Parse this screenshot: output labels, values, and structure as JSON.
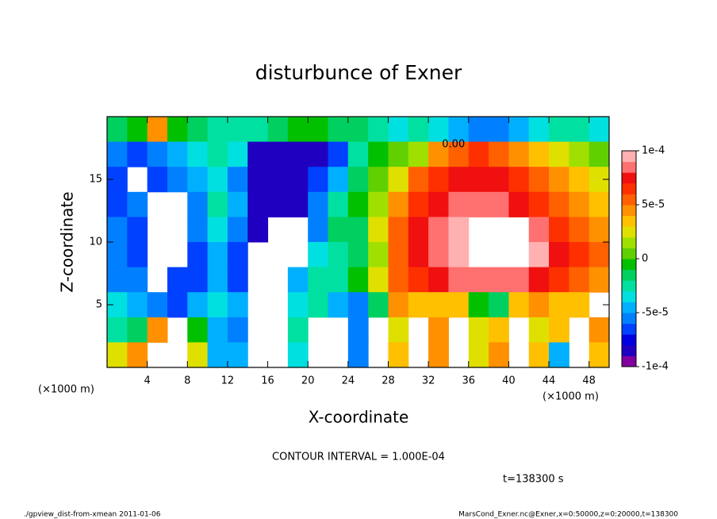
{
  "chart_data": {
    "type": "contourf",
    "title": "disturbunce of Exner",
    "x_label": "X-coordinate",
    "y_label": "Z-coordinate",
    "x_unit_left": "(×1000 m)",
    "x_unit_right": "(×1000 m)",
    "contour_label": "0.00",
    "contour_interval": "CONTOUR INTERVAL = 1.000E-04",
    "time_label": "t=138300 s",
    "footer_left": "./gpview_dist-from-xmean  2011-01-06",
    "footer_right": "MarsCond_Exner.nc@Exner,x=0:50000,z=0:20000,t=138300",
    "xlim": [
      0,
      50
    ],
    "ylim": [
      0,
      20
    ],
    "xticks": [
      4,
      8,
      12,
      16,
      20,
      24,
      28,
      32,
      36,
      40,
      44,
      48
    ],
    "yticks": [
      5,
      10,
      15
    ],
    "x": [
      1,
      3,
      5,
      7,
      9,
      11,
      13,
      15,
      17,
      19,
      21,
      23,
      25,
      27,
      29,
      31,
      33,
      35,
      37,
      39,
      41,
      43,
      45,
      47,
      49
    ],
    "y": [
      19,
      17,
      15,
      13,
      11,
      9,
      7,
      5,
      3,
      1
    ],
    "cell_size": 2,
    "z": [
      [
        -2e-05,
        -1e-05,
        4e-05,
        -1e-05,
        -2e-05,
        -3e-05,
        -3e-05,
        -3e-05,
        -2e-05,
        -1e-05,
        -1e-05,
        -2e-05,
        -2e-05,
        -3e-05,
        -4e-05,
        -3e-05,
        -4e-05,
        -5e-05,
        -6e-05,
        -6e-05,
        -5e-05,
        -4e-05,
        -3e-05,
        -3e-05,
        -4e-05
      ],
      [
        -6e-05,
        -7e-05,
        -6e-05,
        -5e-05,
        -4e-05,
        -3e-05,
        -4e-05,
        -8e-05,
        -8e-05,
        -8e-05,
        -8e-05,
        -7e-05,
        -3e-05,
        -1e-05,
        0,
        1e-05,
        4e-05,
        5e-05,
        6e-05,
        5e-05,
        4e-05,
        3e-05,
        2e-05,
        1e-05,
        0
      ],
      [
        -7e-05,
        null,
        -7e-05,
        -6e-05,
        -5e-05,
        -4e-05,
        -6e-05,
        -8e-05,
        -8e-05,
        -8e-05,
        -7e-05,
        -5e-05,
        -2e-05,
        0,
        2e-05,
        5e-05,
        6e-05,
        7e-05,
        7e-05,
        7e-05,
        6e-05,
        5e-05,
        4e-05,
        3e-05,
        2e-05
      ],
      [
        -7e-05,
        -6e-05,
        null,
        null,
        -6e-05,
        -3e-05,
        -5e-05,
        -8e-05,
        -8e-05,
        -8e-05,
        -6e-05,
        -3e-05,
        -1e-05,
        1e-05,
        4e-05,
        6e-05,
        7e-05,
        8e-05,
        8e-05,
        8e-05,
        7e-05,
        6e-05,
        5e-05,
        4e-05,
        3e-05
      ],
      [
        -6e-05,
        -7e-05,
        null,
        null,
        -6e-05,
        -4e-05,
        -6e-05,
        -8e-05,
        null,
        null,
        -6e-05,
        -2e-05,
        -2e-05,
        2e-05,
        5e-05,
        7e-05,
        8e-05,
        9e-05,
        null,
        null,
        null,
        8e-05,
        6e-05,
        5e-05,
        4e-05
      ],
      [
        -6e-05,
        -7e-05,
        null,
        null,
        -7e-05,
        -5e-05,
        -7e-05,
        null,
        null,
        null,
        -4e-05,
        -3e-05,
        -2e-05,
        1e-05,
        5e-05,
        7e-05,
        8e-05,
        9e-05,
        null,
        null,
        null,
        9e-05,
        7e-05,
        6e-05,
        5e-05
      ],
      [
        -6e-05,
        -6e-05,
        null,
        -7e-05,
        -7e-05,
        -5e-05,
        -7e-05,
        null,
        null,
        -5e-05,
        -3e-05,
        -3e-05,
        -1e-05,
        2e-05,
        5e-05,
        6e-05,
        7e-05,
        8e-05,
        8e-05,
        8e-05,
        8e-05,
        7e-05,
        6e-05,
        5e-05,
        4e-05
      ],
      [
        -4e-05,
        -5e-05,
        -6e-05,
        -7e-05,
        -5e-05,
        -4e-05,
        -5e-05,
        null,
        null,
        -4e-05,
        -3e-05,
        -5e-05,
        -6e-05,
        -2e-05,
        4e-05,
        3e-05,
        3e-05,
        3e-05,
        -1e-05,
        -2e-05,
        3e-05,
        4e-05,
        3e-05,
        3e-05,
        null
      ],
      [
        -3e-05,
        -2e-05,
        4e-05,
        null,
        -1e-05,
        -5e-05,
        -6e-05,
        null,
        null,
        -3e-05,
        null,
        null,
        -6e-05,
        null,
        2e-05,
        null,
        4e-05,
        null,
        2e-05,
        3e-05,
        null,
        2e-05,
        3e-05,
        null,
        4e-05
      ],
      [
        2e-05,
        4e-05,
        null,
        null,
        2e-05,
        -5e-05,
        -5e-05,
        null,
        null,
        -4e-05,
        null,
        null,
        -6e-05,
        null,
        3e-05,
        null,
        4e-05,
        null,
        2e-05,
        4e-05,
        null,
        3e-05,
        -5e-05,
        null,
        3e-05
      ]
    ],
    "clim": [
      -0.0001,
      0.0001
    ],
    "cticks": [
      {
        "value": 0.0001,
        "label": "1e-4"
      },
      {
        "value": 5e-05,
        "label": "5e-5"
      },
      0,
      {
        "value": -5e-05,
        "label": "-5e-5"
      },
      {
        "value": -0.0001,
        "label": "-1e-4"
      }
    ],
    "colors": [
      "#8000a0",
      "#2000c0",
      "#0000e0",
      "#0040ff",
      "#0080ff",
      "#00b0ff",
      "#00e0e0",
      "#00e0a0",
      "#00d060",
      "#00c000",
      "#60d000",
      "#a0e000",
      "#e0e000",
      "#ffc000",
      "#ff9000",
      "#ff6000",
      "#ff3000",
      "#f01010",
      "#ff7070",
      "#ffb0b0"
    ]
  }
}
